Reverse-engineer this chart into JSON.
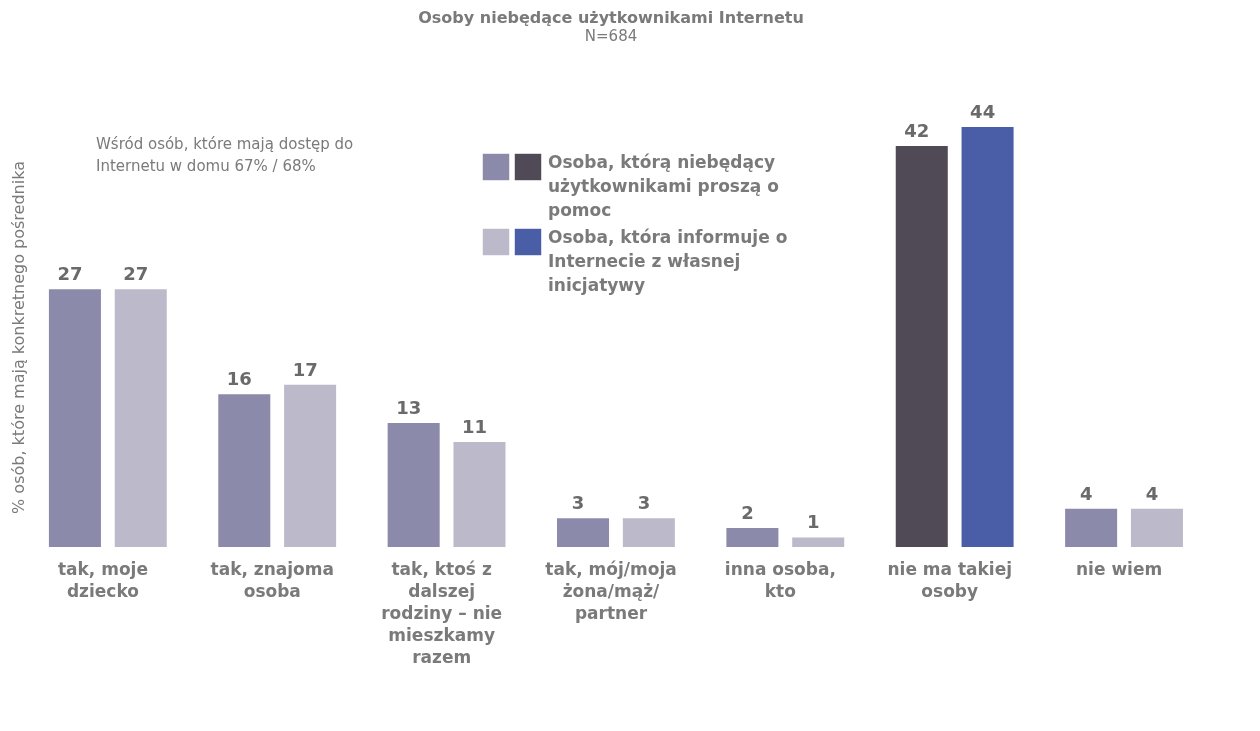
{
  "chart_data": {
    "type": "bar",
    "title": "Osoby niebędące użytkownikami Internetu",
    "subtitle": "N=684",
    "ylabel": "% osób, które mają konkretnego pośrednika",
    "categories": [
      "tak, moje dziecko",
      "tak, znajoma osoba",
      "tak, ktoś z dalszej rodziny – nie mieszkamy razem",
      "tak, mój/moja żona/mąż/ partner",
      "inna osoba, kto",
      "nie ma takiej osoby",
      "nie wiem"
    ],
    "series": [
      {
        "name": "Osoba, którą niebędący użytkownikami proszą o pomoc",
        "color": "#8b8aab",
        "colors": [
          "#8b8aab",
          "#8b8aab",
          "#8b8aab",
          "#8b8aab",
          "#8b8aab",
          "#4f4a55",
          "#8b8aab"
        ],
        "values": [
          27,
          16,
          13,
          3,
          2,
          42,
          4
        ]
      },
      {
        "name": "Osoba, która informuje o Internecie z własnej inicjatywy",
        "color": "#bcbaca",
        "colors": [
          "#bcbaca",
          "#bcbaca",
          "#bcbaca",
          "#bcbaca",
          "#bcbaca",
          "#4a5ea8",
          "#bcbaca"
        ],
        "values": [
          27,
          17,
          11,
          3,
          1,
          44,
          4
        ]
      }
    ],
    "data_labels": true,
    "tick_labels": "x",
    "grid": false,
    "legend": "top",
    "annotations": [
      "Wśród osób, które mają dostęp do Internetu w domu 67% / 68%"
    ]
  }
}
